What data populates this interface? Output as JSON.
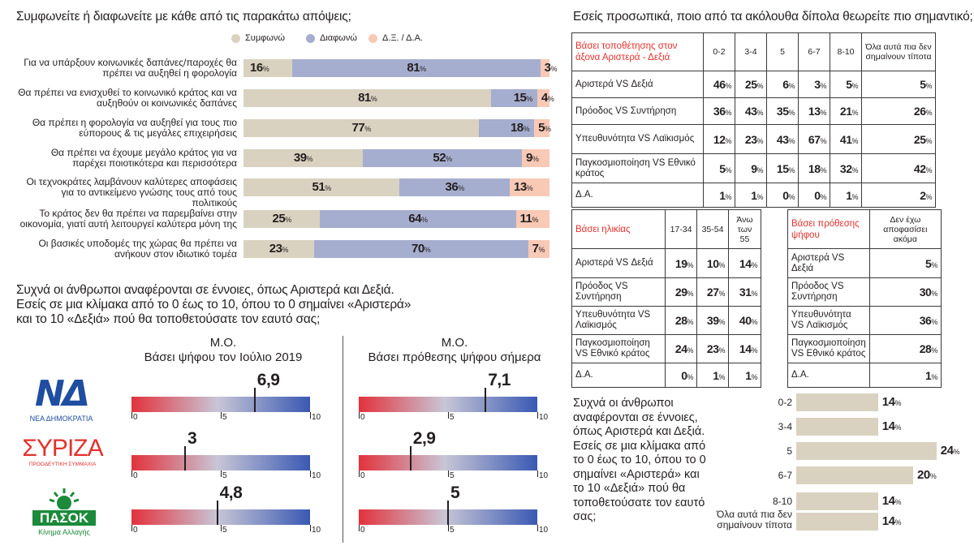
{
  "opinions": {
    "title": "Συμφωνείτε ή διαφωνείτε με κάθε από τις παρακάτω απόψεις;",
    "legend": [
      {
        "label": "Συμφωνώ",
        "color": "#d9d2c0"
      },
      {
        "label": "Διαφωνώ",
        "color": "#a6aecf"
      },
      {
        "label": "Δ.Ξ. / Δ.Α.",
        "color": "#f8c9b5"
      }
    ],
    "pct_symbol": "%"
  },
  "scale_question": {
    "text": "Συχνά οι άνθρωποι αναφέρονται σε έννοιες, όπως Αριστερά και Δεξιά. Εσείς σε μια κλίμακα από το 0 έως το 10, όπου το 0 σημαίνει «Αριστερά» και το 10 «Δεξιά» πού θα τοποθετούσατε τον εαυτό σας;"
  },
  "panel_left": {
    "title1": "Μ.Ο.",
    "title2": "Βάσει ψήφου τον Ιούλιο 2019"
  },
  "panel_right": {
    "title1": "Μ.Ο.",
    "title2": "Βάσει πρόθεσης ψήφου σήμερα"
  },
  "scale_ticks": [
    "0",
    "5",
    "10"
  ],
  "parties": [
    {
      "name": "ΝΔ",
      "logo_text": "ΝΔ",
      "sub": "ΝΕΑ ΔΗΜΟΚΡΑΤΙΑ",
      "color": "#1f4da0"
    },
    {
      "name": "ΣΥΡΙΖΑ",
      "logo_text": "ΣΥΡΙΖΑ",
      "sub": "ΠΡΟΟΔΕΥΤΙΚΗ ΣΥΜΜΑΧΙΑ",
      "color": "#e3312d"
    },
    {
      "name": "ΠΑΣΟΚ",
      "logo_text": "ΠΑΣΟΚ",
      "sub": "Κίνημα Αλλαγής",
      "color": "#1c8a3a"
    }
  ],
  "dipole_question": "Εσείς προσωπικά, ποιο από τα ακόλουθα δίπολα θεωρείτε πιο σημαντικό;",
  "table1": {
    "header": "Βάσει τοποθέτησης στον άξονα Αριστερά - Δεξιά",
    "columns": [
      "0-2",
      "3-4",
      "5",
      "6-7",
      "8-10",
      "Όλα αυτά πια δεν σημαίνουν τίποτα"
    ],
    "rows": [
      {
        "label": "Αριστερά VS Δεξιά",
        "values": [
          "46",
          "25",
          "6",
          "3",
          "5",
          "5"
        ]
      },
      {
        "label": "Πρόοδος VS Συντήρηση",
        "values": [
          "36",
          "43",
          "35",
          "13",
          "21",
          "26"
        ]
      },
      {
        "label": "Υπευθυνότητα VS Λαϊκισμός",
        "values": [
          "12",
          "23",
          "43",
          "67",
          "41",
          "25"
        ]
      },
      {
        "label": "Παγκοσμιοποίηση VS Εθνικό κράτος",
        "values": [
          "5",
          "9",
          "15",
          "18",
          "32",
          "42"
        ]
      },
      {
        "label": "Δ.Α.",
        "values": [
          "1",
          "1",
          "0",
          "0",
          "1",
          "2"
        ]
      }
    ]
  },
  "table2": {
    "header": "Βάσει ηλικίας",
    "columns": [
      "17-34",
      "35-54",
      "Άνω των 55"
    ],
    "rows": [
      {
        "label": "Αριστερά VS Δεξιά",
        "values": [
          "19",
          "10",
          "14"
        ]
      },
      {
        "label": "Πρόοδος VS Συντήρηση",
        "values": [
          "29",
          "27",
          "31"
        ]
      },
      {
        "label": "Υπευθυνότητα VS Λαϊκισμός",
        "values": [
          "28",
          "39",
          "40"
        ]
      },
      {
        "label": "Παγκοσμιοποίηση VS Εθνικό κράτος",
        "values": [
          "24",
          "23",
          "14"
        ]
      },
      {
        "label": "Δ.Α.",
        "values": [
          "0",
          "1",
          "1"
        ]
      }
    ]
  },
  "table3": {
    "header": "Βάσει πρόθεσης ψήφου",
    "columns": [
      "Δεν έχω αποφασίσει ακόμα"
    ],
    "rows": [
      {
        "label": "Αριστερά VS Δεξιά",
        "values": [
          "5"
        ]
      },
      {
        "label": "Πρόοδος VS Συντήρηση",
        "values": [
          "30"
        ]
      },
      {
        "label": "Υπευθυνότητα VS Λαϊκισμός",
        "values": [
          "36"
        ]
      },
      {
        "label": "Παγκοσμιοποίηση VS Εθνικό κράτος",
        "values": [
          "28"
        ]
      },
      {
        "label": "Δ.Α.",
        "values": [
          "1"
        ]
      }
    ]
  },
  "right_question": "Συχνά οι άνθρωποι αναφέρονται σε έννοιες, όπως Αριστερά και Δεξιά. Εσείς σε μια κλίμακα από το 0 έως το 10, όπου το 0 σημαίνει «Αριστερά» και το 10 «Δεξιά» πού θα τοποθετούσατε τον εαυτό σας;",
  "chart_data": [
    {
      "type": "bar",
      "orientation": "horizontal",
      "stacked": true,
      "title": "Συμφωνείτε ή διαφωνείτε με κάθε από τις παρακάτω απόψεις;",
      "categories": [
        "Για να υπάρξουν κοινωνικές δαπάνες/παροχές θα πρέπει να αυξηθεί η φορολογία",
        "Θα πρέπει να ενισχυθεί το κοινωνικό κράτος και να αυξηθούν οι κοινωνικές δαπάνες",
        "Θα πρέπει η φορολογία να αυξηθεί για τους πιο εύπορους & τις μεγάλες επιχειρήσεις",
        "Θα πρέπει να έχουμε μεγάλο κράτος για να παρέχει ποιοτικότερα και περισσότερα",
        "Οι τεχνοκράτες λαμβάνουν καλύτερες αποφάσεις για το αντικείμενο γνώσης τους από τους πολιτικούς",
        "Το κράτος δεν θα πρέπει να παρεμβαίνει στην οικονομία, γιατί αυτή λειτουργεί καλύτερα μόνη της",
        "Οι βασικές υποδομές της χώρας θα πρέπει να ανήκουν στον ιδιωτικό τομέα"
      ],
      "series": [
        {
          "name": "Συμφωνώ",
          "color": "#d9d2c0",
          "values": [
            16,
            81,
            77,
            39,
            51,
            25,
            23
          ]
        },
        {
          "name": "Διαφωνώ",
          "color": "#a6aecf",
          "values": [
            81,
            15,
            18,
            52,
            36,
            64,
            70
          ]
        },
        {
          "name": "Δ.Ξ. / Δ.Α.",
          "color": "#f8c9b5",
          "values": [
            3,
            4,
            5,
            9,
            13,
            11,
            7
          ]
        }
      ],
      "xlim": [
        0,
        100
      ],
      "legend": "top"
    },
    {
      "type": "bar",
      "title": "Βάσει ψήφου τον Ιούλιο 2019",
      "categories": [
        "ΝΔ",
        "ΣΥΡΙΖΑ",
        "ΠΑΣΟΚ"
      ],
      "values": [
        6.9,
        3,
        4.8
      ],
      "labels": [
        "6,9",
        "3",
        "4,8"
      ],
      "xlim": [
        0,
        10
      ]
    },
    {
      "type": "bar",
      "title": "Βάσει πρόθεσης ψήφου σήμερα",
      "categories": [
        "ΝΔ",
        "ΣΥΡΙΖΑ",
        "ΠΑΣΟΚ"
      ],
      "values": [
        7.1,
        2.9,
        5
      ],
      "labels": [
        "7,1",
        "2,9",
        "5"
      ],
      "xlim": [
        0,
        10
      ]
    },
    {
      "type": "bar",
      "orientation": "horizontal",
      "categories": [
        "0-2",
        "3-4",
        "5",
        "6-7",
        "8-10",
        "Όλα αυτά πια δεν σημαίνουν τίποτα"
      ],
      "values": [
        14,
        14,
        24,
        20,
        14,
        14
      ],
      "color": "#d9d2c0"
    }
  ]
}
